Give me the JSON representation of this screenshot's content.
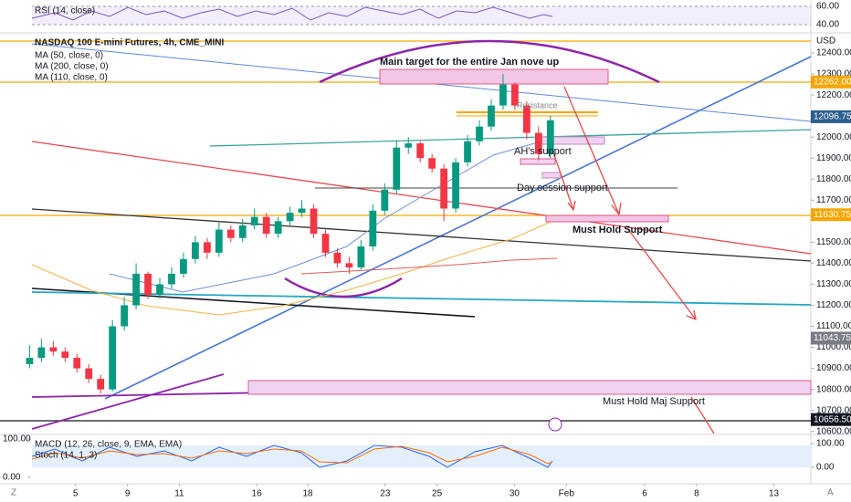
{
  "chart_data": {
    "type": "candlestick",
    "title": "NASDAQ 100 E-mini Futures, 4h, CME_MINI",
    "indicators": [
      "MA (50, close, 0)",
      "MA (200, close, 0)",
      "MA (110, close, 0)"
    ],
    "currency": "USD",
    "xlim": [
      -2.5,
      66
    ],
    "xticks": [
      {
        "value": 3.88,
        "label": "5"
      },
      {
        "value": 8.27,
        "label": "9"
      },
      {
        "value": 12.65,
        "label": "11"
      },
      {
        "value": 19.19,
        "label": "16"
      },
      {
        "value": 23.5,
        "label": "18"
      },
      {
        "value": 30.04,
        "label": "23"
      },
      {
        "value": 34.42,
        "label": "25"
      },
      {
        "value": 40.96,
        "label": "30"
      },
      {
        "value": 45.35,
        "label": "Feb"
      },
      {
        "value": 51.96,
        "label": "6"
      },
      {
        "value": 56.35,
        "label": "8"
      },
      {
        "value": 62.88,
        "label": "13"
      }
    ],
    "ylim": [
      10590,
      12487
    ],
    "yticks": [
      {
        "value": 12400,
        "label": "12400.00"
      },
      {
        "value": 12300,
        "label": "12300.00"
      },
      {
        "value": 12200,
        "label": "12200.00"
      },
      {
        "value": 12000,
        "label": "12000.00"
      },
      {
        "value": 11900,
        "label": "11900.00"
      },
      {
        "value": 11800,
        "label": "11800.00"
      },
      {
        "value": 11700,
        "label": "11700.00"
      },
      {
        "value": 11500,
        "label": "11500.00"
      },
      {
        "value": 11400,
        "label": "11400.00"
      },
      {
        "value": 11300,
        "label": "11300.00"
      },
      {
        "value": 11200,
        "label": "11200.00"
      },
      {
        "value": 11100,
        "label": "11100.00"
      },
      {
        "value": 11000,
        "label": "11000.00"
      },
      {
        "value": 10900,
        "label": "10900.00"
      },
      {
        "value": 10800,
        "label": "10800.00"
      },
      {
        "value": 10700,
        "label": "10700.00"
      },
      {
        "value": 10600,
        "label": "10600.00"
      }
    ],
    "up_color": "#089981",
    "down_color": "#f23645",
    "open": [
      10920,
      10950,
      11000,
      10980,
      10950,
      10900,
      10850,
      10800,
      11100,
      11200,
      11350,
      11250,
      11300,
      11350,
      11420,
      11500,
      11450,
      11560,
      11520,
      11580,
      11620,
      11540,
      11600,
      11640,
      11660,
      11540,
      11450,
      11400,
      11380,
      11480,
      11650,
      11750,
      11950,
      11970,
      11900,
      11850,
      11660,
      11880,
      11980,
      12050,
      12150,
      12250,
      12150,
      12020,
      11920
    ],
    "high": [
      11010,
      11040,
      11030,
      11000,
      10970,
      10920,
      10870,
      11130,
      11240,
      11400,
      11360,
      11330,
      11380,
      11450,
      11530,
      11520,
      11600,
      11580,
      11610,
      11660,
      11640,
      11620,
      11670,
      11700,
      11680,
      11560,
      11470,
      11430,
      11510,
      11680,
      11780,
      11980,
      12000,
      11980,
      11920,
      11870,
      11900,
      12010,
      12080,
      12180,
      12300,
      12260,
      12170,
      12050,
      12100
    ],
    "low": [
      10900,
      10930,
      10960,
      10930,
      10880,
      10830,
      10780,
      10790,
      11080,
      11180,
      11230,
      11230,
      11280,
      11330,
      11400,
      11420,
      11430,
      11500,
      11500,
      11560,
      11520,
      11520,
      11580,
      11620,
      11520,
      11430,
      11380,
      11350,
      11370,
      11460,
      11630,
      11730,
      11920,
      11880,
      11830,
      11600,
      11640,
      11860,
      11960,
      12030,
      12130,
      12130,
      11990,
      11890,
      11900
    ],
    "close": [
      10950,
      11000,
      10980,
      10950,
      10900,
      10850,
      10800,
      11100,
      11200,
      11350,
      11250,
      11300,
      11350,
      11420,
      11500,
      11450,
      11560,
      11520,
      11580,
      11620,
      11540,
      11600,
      11640,
      11660,
      11540,
      11450,
      11400,
      11380,
      11480,
      11650,
      11750,
      11950,
      11970,
      11900,
      11850,
      11660,
      11880,
      11980,
      12050,
      12150,
      12250,
      12150,
      12020,
      11920,
      12080
    ],
    "price_labels": [
      {
        "value": 12262,
        "label": "12262.00",
        "color": "#f7a600"
      },
      {
        "value": 12096.75,
        "label": "12096.75",
        "color": "#2a5f8f"
      },
      {
        "value": 11630.75,
        "label": "11630.75",
        "color": "#f7a600"
      },
      {
        "value": 11043.75,
        "label": "11043.75",
        "color": "#787b86"
      },
      {
        "value": 10656.5,
        "label": "10656.50",
        "color": "#131722"
      }
    ],
    "annotations": [
      "Main target for the entire Jan nove up",
      "Resistance",
      "AH's support",
      "Day session support",
      "Must Hold Support",
      "Must Hold Maj Support"
    ],
    "rsi": {
      "title": "RSI (14, close)",
      "ylim": [
        32,
        67
      ],
      "yticks": [
        {
          "value": 60,
          "label": "60.00"
        },
        {
          "value": 40,
          "label": "40.00"
        }
      ]
    },
    "oscillator": {
      "titles": [
        "MACD (12, 26, close, 9, EMA, EMA)",
        "Stoch (14, 1, 3)"
      ],
      "ylim": [
        -69,
        131
      ],
      "yticks": [
        {
          "value": 100,
          "label": "100.00"
        },
        {
          "value": 0,
          "label": "0.00"
        }
      ],
      "left_ylim": [
        -17,
        107
      ],
      "left_yticks": [
        {
          "value": 100,
          "label": "100.00"
        },
        {
          "value": 0,
          "label": "0.00"
        }
      ]
    }
  }
}
